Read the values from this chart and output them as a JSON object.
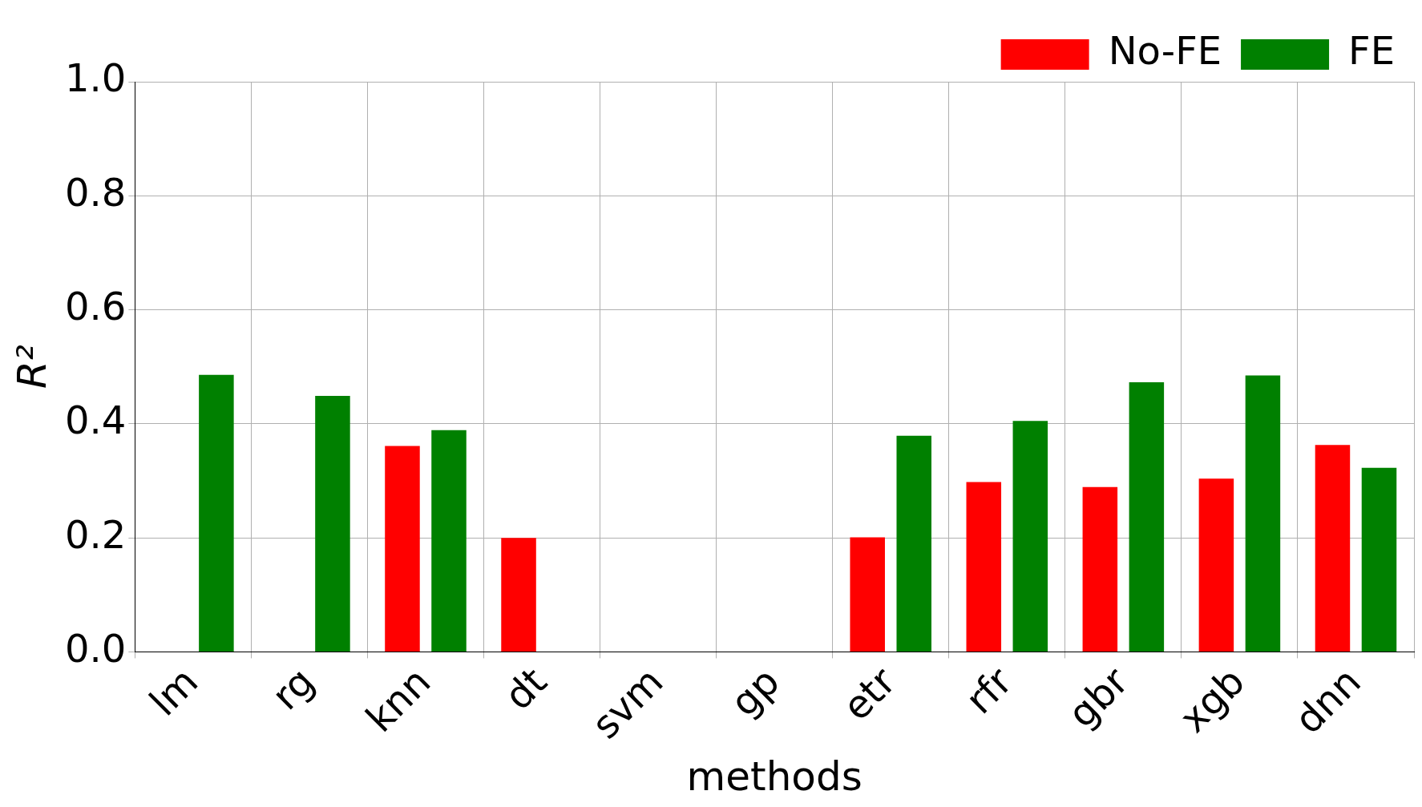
{
  "chart_data": {
    "type": "bar",
    "xlabel": "methods",
    "ylabel": "R²",
    "categories": [
      "lm",
      "rg",
      "knn",
      "dt",
      "svm",
      "gp",
      "etr",
      "rfr",
      "gbr",
      "xgb",
      "dnn"
    ],
    "series": [
      {
        "name": "No-FE",
        "color": "#ff0000",
        "values": [
          null,
          null,
          0.361,
          0.2,
          null,
          null,
          0.201,
          0.298,
          0.289,
          0.304,
          0.363
        ]
      },
      {
        "name": "FE",
        "color": "#008000",
        "values": [
          0.486,
          0.449,
          0.389,
          null,
          null,
          null,
          0.379,
          0.405,
          0.473,
          0.485,
          0.323
        ]
      }
    ],
    "ylim": [
      0,
      1
    ],
    "yticks": [
      {
        "value": 0,
        "label": "0.0"
      },
      {
        "value": 0.2,
        "label": "0.2"
      },
      {
        "value": 0.4,
        "label": "0.4"
      },
      {
        "value": 0.6,
        "label": "0.6"
      },
      {
        "value": 0.8,
        "label": "0.8"
      },
      {
        "value": 1,
        "label": "1.0"
      }
    ],
    "grid": true,
    "legend": "top right"
  }
}
